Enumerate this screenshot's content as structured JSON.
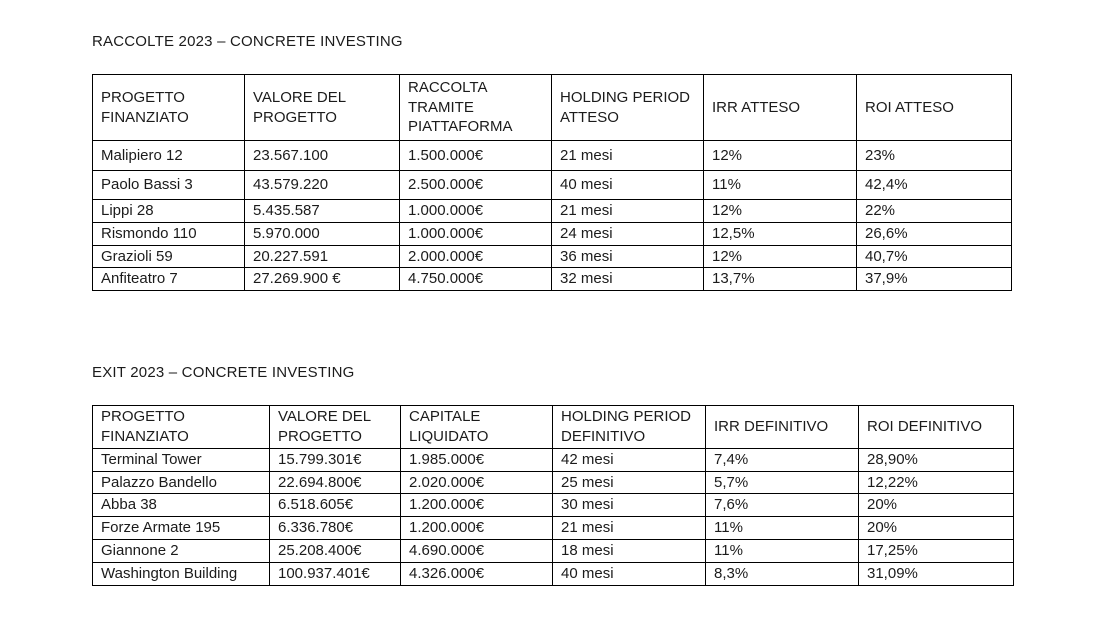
{
  "document": {
    "background": "#ffffff",
    "text_color": "#1b1b1b",
    "table_border_color": "#000000"
  },
  "tables": [
    {
      "name": "raccolte-2023",
      "title": "RACCOLTE 2023 – CONCRETE INVESTING",
      "headers": [
        "PROGETTO\nFINANZIATO",
        "VALORE DEL\nPROGETTO",
        "RACCOLTA\nTRAMITE\nPIATTAFORMA",
        "HOLDING PERIOD\nATTESO",
        "IRR ATTESO",
        "ROI ATTESO"
      ],
      "rows": [
        [
          "Malipiero 12",
          "23.567.100",
          "1.500.000€",
          "21 mesi",
          "12%",
          "23%"
        ],
        [
          "Paolo Bassi 3",
          "43.579.220",
          "2.500.000€",
          "40 mesi",
          "11%",
          "42,4%"
        ],
        [
          "Lippi 28",
          "5.435.587",
          "1.000.000€",
          "21 mesi",
          "12%",
          "22%"
        ],
        [
          "Rismondo 110",
          "5.970.000",
          "1.000.000€",
          "24 mesi",
          "12,5%",
          "26,6%"
        ],
        [
          "Grazioli 59",
          "20.227.591",
          "2.000.000€",
          "36 mesi",
          "12%",
          "40,7%"
        ],
        [
          "Anfiteatro 7",
          "27.269.900 €",
          "4.750.000€",
          "32 mesi",
          "13,7%",
          "37,9%"
        ]
      ]
    },
    {
      "name": "exit-2023",
      "title": "EXIT 2023 – CONCRETE INVESTING",
      "headers": [
        "PROGETTO\nFINANZIATO",
        "VALORE DEL\nPROGETTO",
        "CAPITALE\nLIQUIDATO",
        "HOLDING PERIOD\nDEFINITIVO",
        "IRR DEFINITIVO",
        "ROI DEFINITIVO"
      ],
      "rows": [
        [
          "Terminal Tower",
          "15.799.301€",
          "1.985.000€",
          "42 mesi",
          "7,4%",
          "28,90%"
        ],
        [
          "Palazzo Bandello",
          "22.694.800€",
          "2.020.000€",
          "25 mesi",
          "5,7%",
          "12,22%"
        ],
        [
          "Abba 38",
          "6.518.605€",
          "1.200.000€",
          "30 mesi",
          "7,6%",
          "20%"
        ],
        [
          "Forze Armate 195",
          "6.336.780€",
          "1.200.000€",
          "21 mesi",
          "11%",
          "20%"
        ],
        [
          "Giannone 2",
          "25.208.400€",
          "4.690.000€",
          "18 mesi",
          "11%",
          "17,25%"
        ],
        [
          "Washington Building",
          "100.937.401€",
          "4.326.000€",
          "40 mesi",
          "8,3%",
          "31,09%"
        ]
      ]
    }
  ]
}
